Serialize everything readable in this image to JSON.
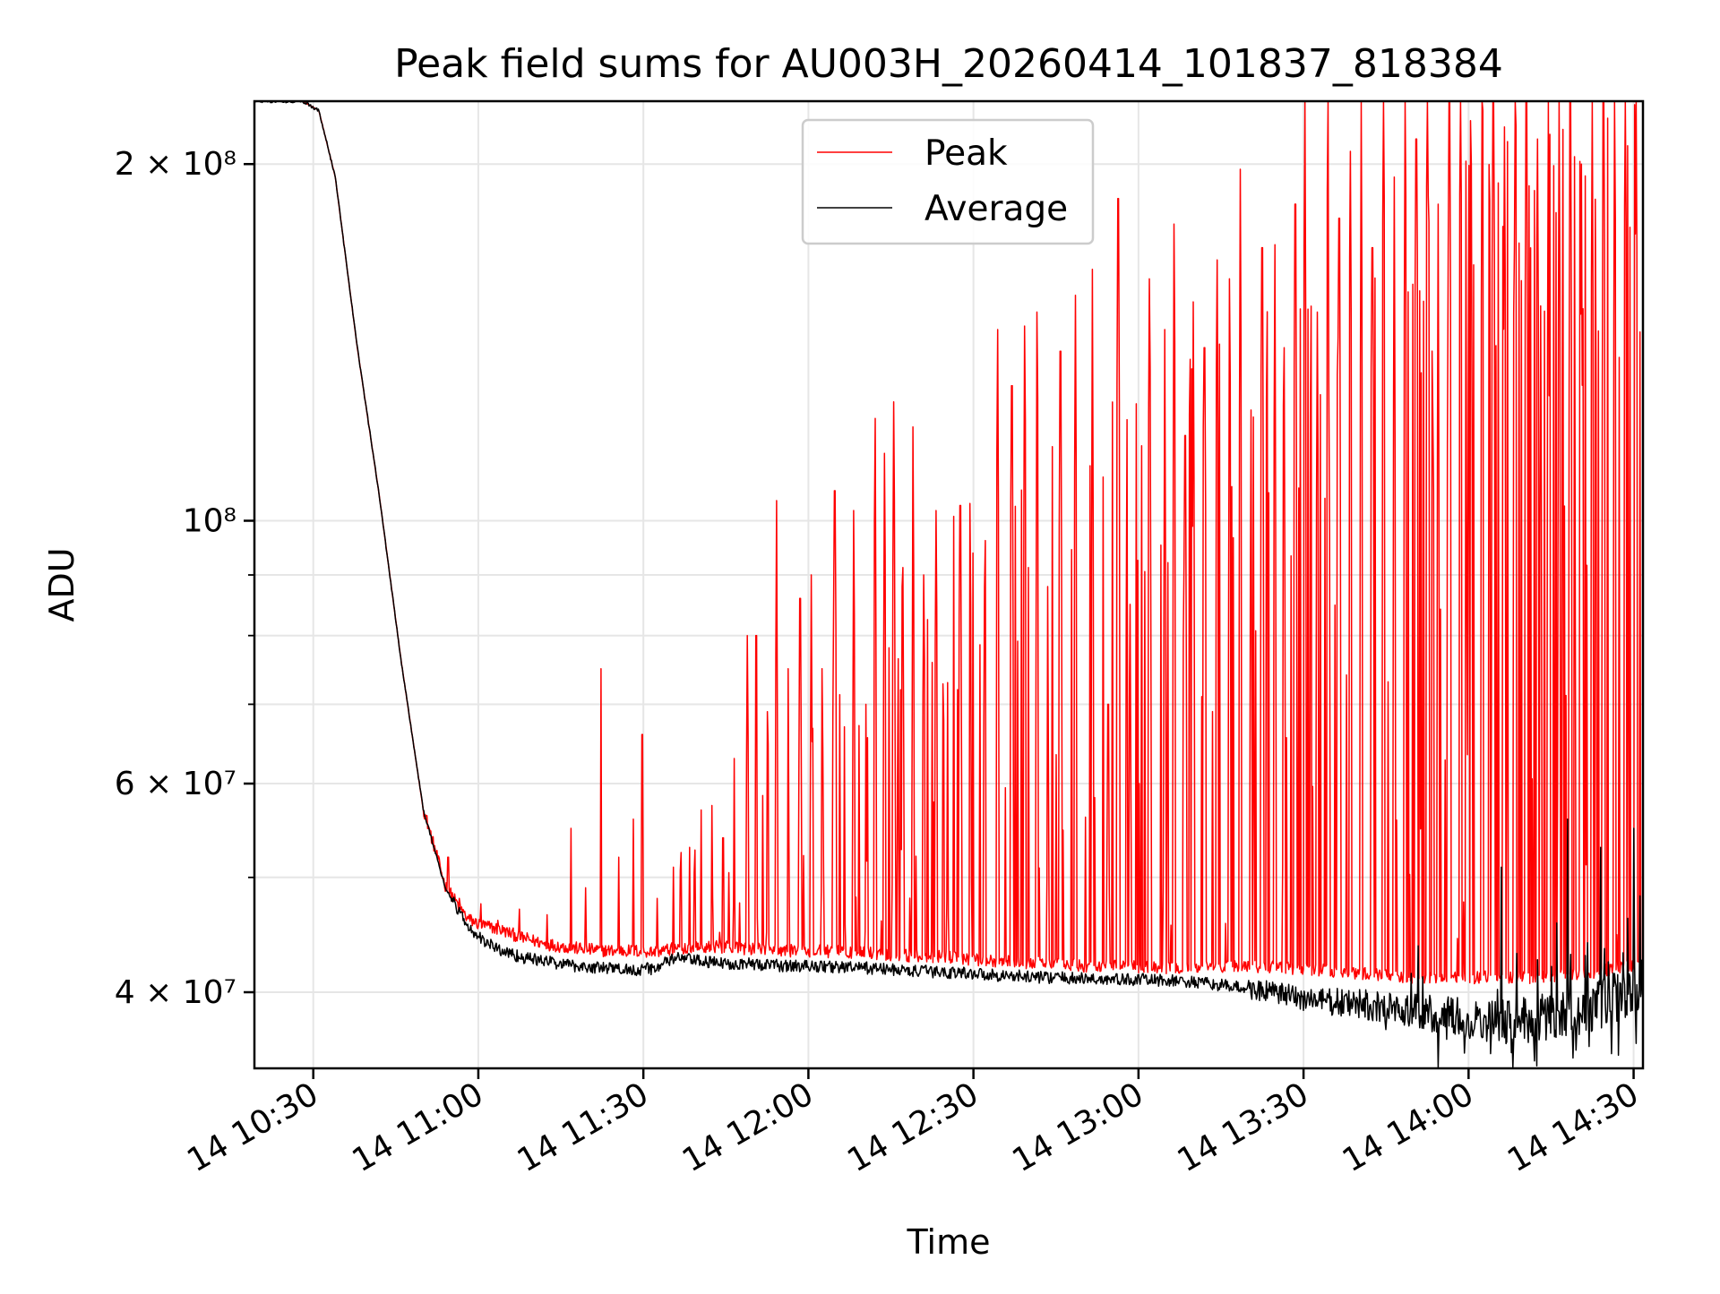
{
  "chart_data": {
    "type": "line",
    "title": "Peak field sums for AU003H_20260414_101837_818384",
    "xlabel": "Time",
    "ylabel": "ADU",
    "yscale": "log",
    "grid": true,
    "legend_position": "top-center",
    "x_unit": "minutes since 14 10:00",
    "xlim": [
      19.3,
      271.7
    ],
    "ylim": [
      34500000,
      226000000
    ],
    "x_ticks": [
      {
        "value": 30,
        "label": "14 10:30"
      },
      {
        "value": 60,
        "label": "14 11:00"
      },
      {
        "value": 90,
        "label": "14 11:30"
      },
      {
        "value": 120,
        "label": "14 12:00"
      },
      {
        "value": 150,
        "label": "14 12:30"
      },
      {
        "value": 180,
        "label": "14 13:00"
      },
      {
        "value": 210,
        "label": "14 13:30"
      },
      {
        "value": 240,
        "label": "14 14:00"
      },
      {
        "value": 270,
        "label": "14 14:30"
      }
    ],
    "y_major_ticks": [
      {
        "value": 40000000,
        "label": "4 × 10⁷"
      },
      {
        "value": 60000000,
        "label": "6 × 10⁷"
      },
      {
        "value": 100000000,
        "label": "10⁸"
      },
      {
        "value": 200000000,
        "label": "2 × 10⁸"
      }
    ],
    "y_minor_ticks": [
      50000000,
      70000000,
      80000000,
      90000000
    ],
    "series": [
      {
        "name": "Peak",
        "color": "#ff0000",
        "x": [
          19.3,
          28,
          31,
          34,
          38,
          42,
          46,
          50,
          54,
          58,
          60,
          64,
          68,
          72,
          76,
          80,
          84,
          88,
          92,
          96,
          100,
          104,
          108,
          112,
          116,
          120,
          126,
          132,
          138,
          144,
          150,
          156,
          162,
          168,
          174,
          180,
          186,
          192,
          198,
          204,
          210,
          216,
          222,
          228,
          234,
          240,
          246,
          252,
          258,
          264,
          268,
          271.7
        ],
        "values": [
          226000000,
          226000000,
          222000000,
          195000000,
          140000000,
          105000000,
          76000000,
          57000000,
          49000000,
          46000000,
          45500000,
          45000000,
          44300000,
          43800000,
          43500000,
          43300000,
          43200000,
          43200000,
          43100000,
          43400000,
          43600000,
          43500000,
          43400000,
          43300000,
          43200000,
          43200000,
          43100000,
          43000000,
          42800000,
          42700000,
          42500000,
          42300000,
          42200000,
          42000000,
          41900000,
          41900000,
          41800000,
          41800000,
          41900000,
          41900000,
          41700000,
          41500000,
          41300000,
          41100000,
          41000000,
          41000000,
          41100000,
          41000000,
          41200000,
          41500000,
          41800000,
          42000000
        ],
        "spikes": [
          {
            "x": 54.5,
            "peak": 52000000
          },
          {
            "x": 56.5,
            "peak": 48000000
          },
          {
            "x": 60.5,
            "peak": 47500000
          },
          {
            "x": 63.5,
            "peak": 46000000
          },
          {
            "x": 67.5,
            "peak": 47000000
          },
          {
            "x": 72.5,
            "peak": 46500000
          },
          {
            "x": 76.8,
            "peak": 55000000
          },
          {
            "x": 79.5,
            "peak": 49000000
          },
          {
            "x": 82.3,
            "peak": 75000000
          },
          {
            "x": 85.5,
            "peak": 52000000
          },
          {
            "x": 88.2,
            "peak": 56000000
          },
          {
            "x": 89.8,
            "peak": 66000000
          },
          {
            "x": 92.5,
            "peak": 48000000
          },
          {
            "x": 95.5,
            "peak": 51000000
          },
          {
            "x": 98.4,
            "peak": 53000000
          },
          {
            "x": 100.5,
            "peak": 57000000
          },
          {
            "x": 102.5,
            "peak": 57500000
          },
          {
            "x": 104.5,
            "peak": 54000000
          },
          {
            "x": 106.5,
            "peak": 63000000
          },
          {
            "x": 108.9,
            "peak": 80000000
          },
          {
            "x": 110.5,
            "peak": 80000000
          },
          {
            "x": 112.5,
            "peak": 69000000
          },
          {
            "x": 114.2,
            "peak": 104000000
          },
          {
            "x": 116.3,
            "peak": 75000000
          },
          {
            "x": 118.5,
            "peak": 86000000
          },
          {
            "x": 120.5,
            "peak": 90000000
          },
          {
            "x": 122.5,
            "peak": 75000000
          },
          {
            "x": 124.8,
            "peak": 106000000
          },
          {
            "x": 126.5,
            "peak": 67000000
          },
          {
            "x": 128.2,
            "peak": 102000000
          },
          {
            "x": 130.5,
            "peak": 70000000
          },
          {
            "x": 132.1,
            "peak": 122000000
          },
          {
            "x": 133.8,
            "peak": 114000000
          },
          {
            "x": 135.5,
            "peak": 126000000
          },
          {
            "x": 137.1,
            "peak": 88000000
          },
          {
            "x": 139.0,
            "peak": 120000000
          },
          {
            "x": 141.0,
            "peak": 90000000
          },
          {
            "x": 143.2,
            "peak": 102000000
          },
          {
            "x": 145.3,
            "peak": 73000000
          },
          {
            "x": 147.6,
            "peak": 103000000
          },
          {
            "x": 149.5,
            "peak": 85000000
          },
          {
            "x": 152.0,
            "peak": 88000000
          },
          {
            "x": 154.4,
            "peak": 145000000
          },
          {
            "x": 157.0,
            "peak": 130000000
          },
          {
            "x": 159.3,
            "peak": 146000000
          },
          {
            "x": 161.5,
            "peak": 150000000
          },
          {
            "x": 163.5,
            "peak": 88000000
          },
          {
            "x": 165.8,
            "peak": 139000000
          },
          {
            "x": 168.5,
            "peak": 155000000
          },
          {
            "x": 171.6,
            "peak": 163000000
          },
          {
            "x": 174.5,
            "peak": 70000000
          },
          {
            "x": 176.3,
            "peak": 187000000
          },
          {
            "x": 178.5,
            "peak": 85000000
          },
          {
            "x": 180.2,
            "peak": 60000000
          },
          {
            "x": 182.0,
            "peak": 160000000
          },
          {
            "x": 184.8,
            "peak": 145000000
          },
          {
            "x": 186.5,
            "peak": 178000000
          },
          {
            "x": 188.5,
            "peak": 118000000
          },
          {
            "x": 190.0,
            "peak": 153000000
          },
          {
            "x": 192.0,
            "peak": 140000000
          },
          {
            "x": 194.3,
            "peak": 166000000
          },
          {
            "x": 196.5,
            "peak": 160000000
          },
          {
            "x": 198.5,
            "peak": 198000000
          },
          {
            "x": 200.5,
            "peak": 124000000
          },
          {
            "x": 202.5,
            "peak": 170000000
          },
          {
            "x": 204.8,
            "peak": 171000000
          },
          {
            "x": 206.5,
            "peak": 140000000
          },
          {
            "x": 208.5,
            "peak": 185000000
          },
          {
            "x": 210.3,
            "peak": 226000000
          },
          {
            "x": 212.5,
            "peak": 150000000
          },
          {
            "x": 214.5,
            "peak": 226000000
          },
          {
            "x": 216.5,
            "peak": 180000000
          },
          {
            "x": 218.5,
            "peak": 205000000
          },
          {
            "x": 220.5,
            "peak": 226000000
          },
          {
            "x": 222.5,
            "peak": 170000000
          },
          {
            "x": 224.5,
            "peak": 226000000
          },
          {
            "x": 226.5,
            "peak": 195000000
          },
          {
            "x": 228.5,
            "peak": 226000000
          },
          {
            "x": 230.5,
            "peak": 210000000
          },
          {
            "x": 232.5,
            "peak": 226000000
          },
          {
            "x": 234.5,
            "peak": 185000000
          },
          {
            "x": 236.5,
            "peak": 226000000
          },
          {
            "x": 238.5,
            "peak": 226000000
          },
          {
            "x": 240.5,
            "peak": 200000000
          },
          {
            "x": 242.5,
            "peak": 226000000
          },
          {
            "x": 244.5,
            "peak": 226000000
          },
          {
            "x": 246.5,
            "peak": 215000000
          },
          {
            "x": 248.5,
            "peak": 226000000
          },
          {
            "x": 250.5,
            "peak": 226000000
          },
          {
            "x": 252.5,
            "peak": 210000000
          },
          {
            "x": 254.5,
            "peak": 226000000
          },
          {
            "x": 256.5,
            "peak": 226000000
          },
          {
            "x": 258.5,
            "peak": 226000000
          },
          {
            "x": 260.5,
            "peak": 200000000
          },
          {
            "x": 262.5,
            "peak": 226000000
          },
          {
            "x": 264.5,
            "peak": 226000000
          },
          {
            "x": 266.5,
            "peak": 226000000
          },
          {
            "x": 268.5,
            "peak": 226000000
          },
          {
            "x": 270.5,
            "peak": 226000000
          }
        ]
      },
      {
        "name": "Average",
        "color": "#000000",
        "x": [
          19.3,
          28,
          31,
          34,
          38,
          42,
          46,
          50,
          54,
          58,
          60,
          64,
          68,
          72,
          76,
          80,
          84,
          88,
          92,
          96,
          100,
          104,
          108,
          112,
          116,
          120,
          126,
          132,
          138,
          144,
          150,
          156,
          162,
          168,
          174,
          180,
          186,
          192,
          198,
          204,
          210,
          216,
          222,
          228,
          234,
          240,
          246,
          252,
          258,
          264,
          268,
          271.7
        ],
        "values": [
          226000000,
          226000000,
          222000000,
          195000000,
          140000000,
          105000000,
          76000000,
          57000000,
          49000000,
          45500000,
          44500000,
          43400000,
          42800000,
          42500000,
          42200000,
          42000000,
          41900000,
          41800000,
          41900000,
          42800000,
          42500000,
          42300000,
          42300000,
          42200000,
          42100000,
          42100000,
          42000000,
          41900000,
          41700000,
          41600000,
          41500000,
          41300000,
          41200000,
          41100000,
          41000000,
          41000000,
          40900000,
          40700000,
          40400000,
          40000000,
          39500000,
          39200000,
          39000000,
          38700000,
          38300000,
          38000000,
          37800000,
          38000000,
          38500000,
          39000000,
          39800000,
          41000000
        ],
        "noise_dips": [
          {
            "x": 225,
            "low": 37200000
          },
          {
            "x": 236,
            "low": 36500000
          },
          {
            "x": 244,
            "low": 35500000
          },
          {
            "x": 252,
            "low": 35000000
          },
          {
            "x": 259,
            "low": 35200000
          },
          {
            "x": 266,
            "low": 35500000
          }
        ],
        "noise_peaks": [
          {
            "x": 246,
            "high": 51000000
          },
          {
            "x": 252,
            "high": 53000000
          },
          {
            "x": 258,
            "high": 56000000
          },
          {
            "x": 264,
            "high": 53000000
          },
          {
            "x": 270,
            "high": 55000000
          }
        ]
      }
    ],
    "legend": [
      {
        "label": "Peak",
        "color": "#ff0000"
      },
      {
        "label": "Average",
        "color": "#000000"
      }
    ]
  }
}
